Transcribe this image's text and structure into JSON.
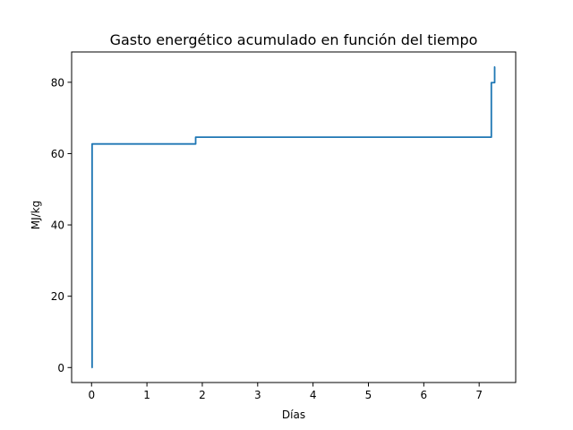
{
  "chart_data": {
    "type": "line",
    "title": "Gasto energético acumulado en función del tiempo",
    "xlabel": "Días",
    "ylabel": "MJ/kg",
    "xlim": [
      -0.36,
      7.66
    ],
    "ylim": [
      -4.2,
      88.5
    ],
    "xticks": [
      0,
      1,
      2,
      3,
      4,
      5,
      6,
      7
    ],
    "yticks": [
      0,
      20,
      40,
      60,
      80
    ],
    "grid": false,
    "series": [
      {
        "color": "#1f77b4",
        "step": "post",
        "x": [
          0.0,
          0.01,
          1.88,
          7.22,
          7.23,
          7.28,
          7.29
        ],
        "y": [
          0.0,
          62.7,
          64.6,
          79.9,
          79.9,
          84.3,
          84.3
        ]
      }
    ]
  }
}
